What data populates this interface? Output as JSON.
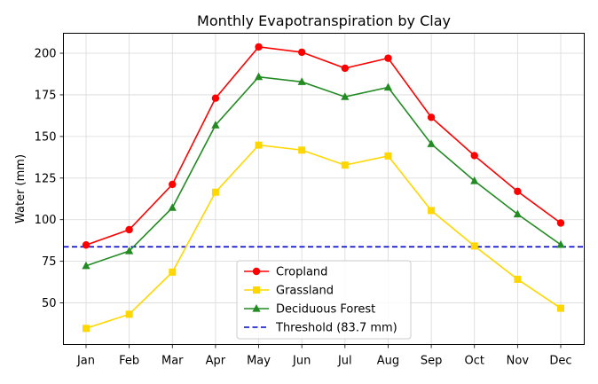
{
  "chart_data": {
    "type": "line",
    "title": "Monthly Evapotranspiration by Clay",
    "xlabel": "",
    "ylabel": "Water (mm)",
    "categories": [
      "Jan",
      "Feb",
      "Mar",
      "Apr",
      "May",
      "Jun",
      "Jul",
      "Aug",
      "Sep",
      "Oct",
      "Nov",
      "Dec"
    ],
    "ylim": [
      25,
      212
    ],
    "yticks": [
      50,
      75,
      100,
      125,
      150,
      175,
      200
    ],
    "ytick_labels": [
      "50",
      "75",
      "100",
      "125",
      "150",
      "175",
      "200"
    ],
    "grid": true,
    "legend_position": "lower-center",
    "series": [
      {
        "name": "Cropland",
        "color": "#ff0000",
        "marker": "circle",
        "values": [
          84.8,
          94.0,
          121.2,
          173.0,
          203.8,
          200.6,
          191.0,
          197.0,
          161.5,
          138.5,
          117.0,
          98.0
        ]
      },
      {
        "name": "Grassland",
        "color": "#ffd700",
        "marker": "square",
        "values": [
          34.7,
          43.2,
          68.5,
          116.5,
          144.8,
          141.8,
          132.8,
          138.3,
          105.5,
          84.2,
          64.2,
          46.8
        ]
      },
      {
        "name": "Deciduous Forest",
        "color": "#228b22",
        "marker": "triangle",
        "values": [
          72.3,
          81.2,
          107.2,
          156.8,
          185.8,
          182.8,
          173.8,
          179.5,
          145.5,
          123.3,
          103.3,
          85.0
        ]
      }
    ],
    "reference_lines": [
      {
        "name": "Threshold (83.7 mm)",
        "value": 83.7,
        "color": "#0000cd",
        "style": "dashed"
      }
    ]
  }
}
